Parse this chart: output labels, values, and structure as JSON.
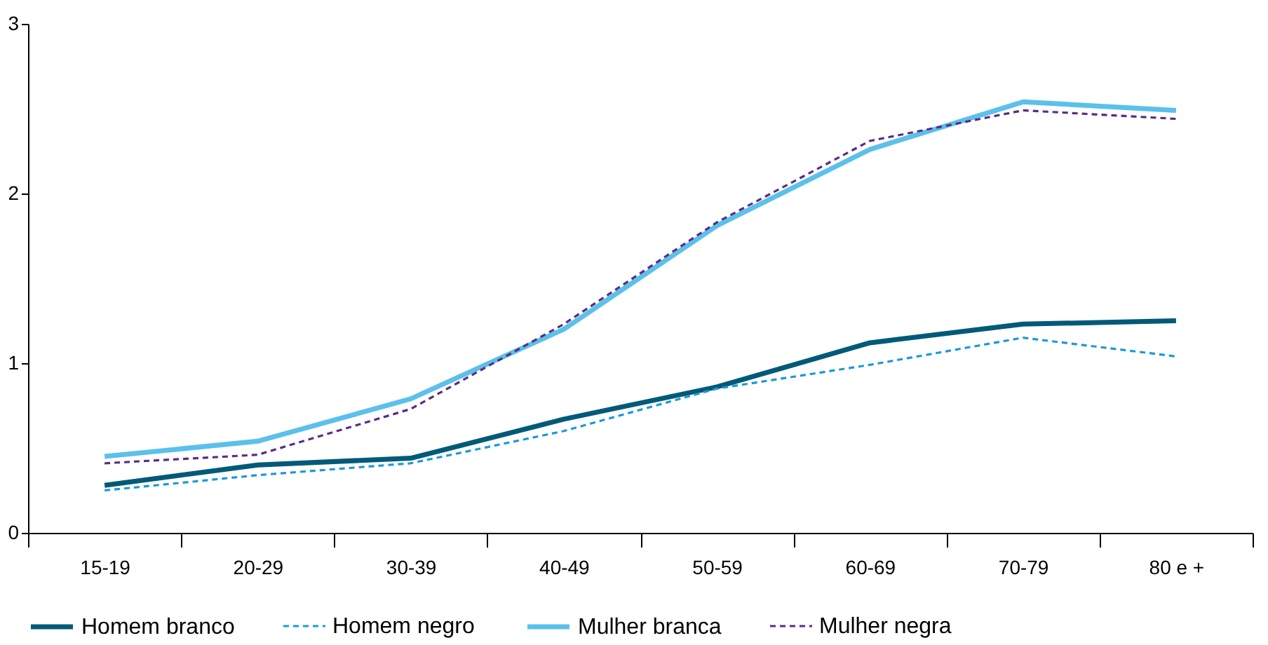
{
  "chart_data": {
    "type": "line",
    "categories": [
      "15-19",
      "20-29",
      "30-39",
      "40-49",
      "50-59",
      "60-69",
      "70-79",
      "80 e +"
    ],
    "series": [
      {
        "name": "Homem branco",
        "color": "#005a78",
        "line_style": "solid",
        "values": [
          0.28,
          0.4,
          0.44,
          0.67,
          0.86,
          1.12,
          1.23,
          1.25
        ]
      },
      {
        "name": "Homem negro",
        "color": "#1a9ad6",
        "line_style": "dashed",
        "values": [
          0.25,
          0.34,
          0.41,
          0.6,
          0.85,
          0.99,
          1.15,
          1.04
        ]
      },
      {
        "name": "Mulher branca",
        "color": "#5bc0eb",
        "line_style": "solid",
        "values": [
          0.45,
          0.54,
          0.79,
          1.2,
          1.81,
          2.26,
          2.54,
          2.49
        ]
      },
      {
        "name": "Mulher negra",
        "color": "#5b2c83",
        "line_style": "dashed",
        "values": [
          0.41,
          0.46,
          0.73,
          1.23,
          1.83,
          2.31,
          2.49,
          2.44
        ]
      }
    ],
    "ylim": [
      0,
      3
    ],
    "yticks": [
      0,
      1,
      2,
      3
    ],
    "grid": false,
    "legend": "bottom",
    "marker": "none"
  }
}
